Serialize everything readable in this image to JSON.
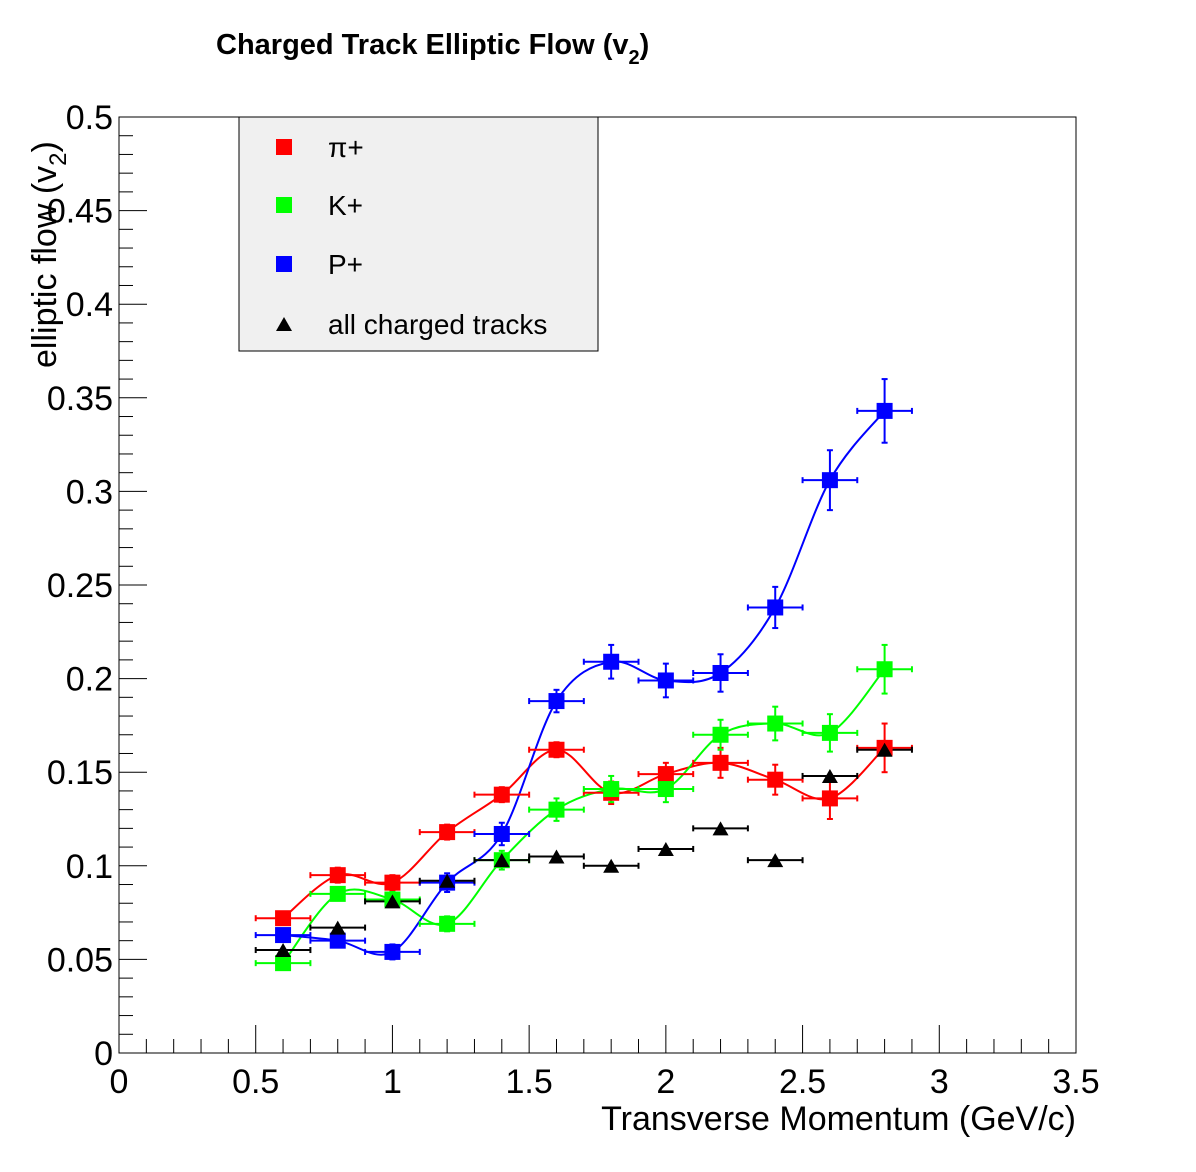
{
  "chart_data": {
    "type": "scatter",
    "title": "Charged Track Elliptic Flow (v",
    "title_subscript": "2",
    "title_close": ")",
    "xlabel": "Transverse Momentum (GeV/c)",
    "ylabel": "elliptic flow (v",
    "ylabel_subscript": "2",
    "ylabel_close": ")",
    "xlim": [
      0,
      3.5
    ],
    "ylim": [
      0,
      0.5
    ],
    "x_ticks": [
      "0",
      "0.5",
      "1",
      "1.5",
      "2",
      "2.5",
      "3",
      "3.5"
    ],
    "y_ticks": [
      "0",
      "0.05",
      "0.1",
      "0.15",
      "0.2",
      "0.25",
      "0.3",
      "0.35",
      "0.4",
      "0.45",
      "0.5"
    ],
    "legend_position": "top-left",
    "x_error": 0.1,
    "series": [
      {
        "name": "π+",
        "color": "#ff0000",
        "marker": "square",
        "smooth_line": true,
        "x": [
          0.6,
          0.8,
          1.0,
          1.2,
          1.4,
          1.6,
          1.8,
          2.0,
          2.2,
          2.4,
          2.6,
          2.8
        ],
        "y": [
          0.072,
          0.095,
          0.091,
          0.118,
          0.138,
          0.162,
          0.139,
          0.149,
          0.155,
          0.146,
          0.136,
          0.163
        ],
        "yerr": [
          0.003,
          0.004,
          0.004,
          0.004,
          0.004,
          0.004,
          0.006,
          0.006,
          0.008,
          0.008,
          0.011,
          0.013
        ]
      },
      {
        "name": "K+",
        "color": "#00ff00",
        "marker": "square",
        "smooth_line": true,
        "x": [
          0.6,
          0.8,
          1.0,
          1.2,
          1.4,
          1.6,
          1.8,
          2.0,
          2.2,
          2.4,
          2.6,
          2.8
        ],
        "y": [
          0.048,
          0.085,
          0.082,
          0.069,
          0.103,
          0.13,
          0.141,
          0.141,
          0.17,
          0.176,
          0.171,
          0.205
        ],
        "yerr": [
          0.003,
          0.003,
          0.004,
          0.004,
          0.005,
          0.006,
          0.007,
          0.007,
          0.008,
          0.009,
          0.01,
          0.013
        ]
      },
      {
        "name": "P+",
        "color": "#0000ff",
        "marker": "square",
        "smooth_line": true,
        "x": [
          0.6,
          0.8,
          1.0,
          1.2,
          1.4,
          1.6,
          1.8,
          2.0,
          2.2,
          2.4,
          2.6,
          2.8
        ],
        "y": [
          0.063,
          0.06,
          0.054,
          0.091,
          0.117,
          0.188,
          0.209,
          0.199,
          0.203,
          0.238,
          0.306,
          0.343
        ],
        "yerr": [
          0.003,
          0.003,
          0.004,
          0.005,
          0.006,
          0.006,
          0.009,
          0.009,
          0.01,
          0.011,
          0.016,
          0.017
        ]
      },
      {
        "name": "all charged tracks",
        "color": "#000000",
        "marker": "triangle",
        "smooth_line": false,
        "x": [
          0.6,
          0.8,
          1.0,
          1.2,
          1.4,
          1.6,
          1.8,
          2.0,
          2.2,
          2.4,
          2.6,
          2.8
        ],
        "y": [
          0.055,
          0.067,
          0.081,
          0.092,
          0.103,
          0.105,
          0.1,
          0.109,
          0.12,
          0.103,
          0.148,
          0.162
        ],
        "yerr": [
          0,
          0,
          0,
          0,
          0,
          0,
          0,
          0,
          0,
          0,
          0,
          0
        ]
      }
    ]
  }
}
